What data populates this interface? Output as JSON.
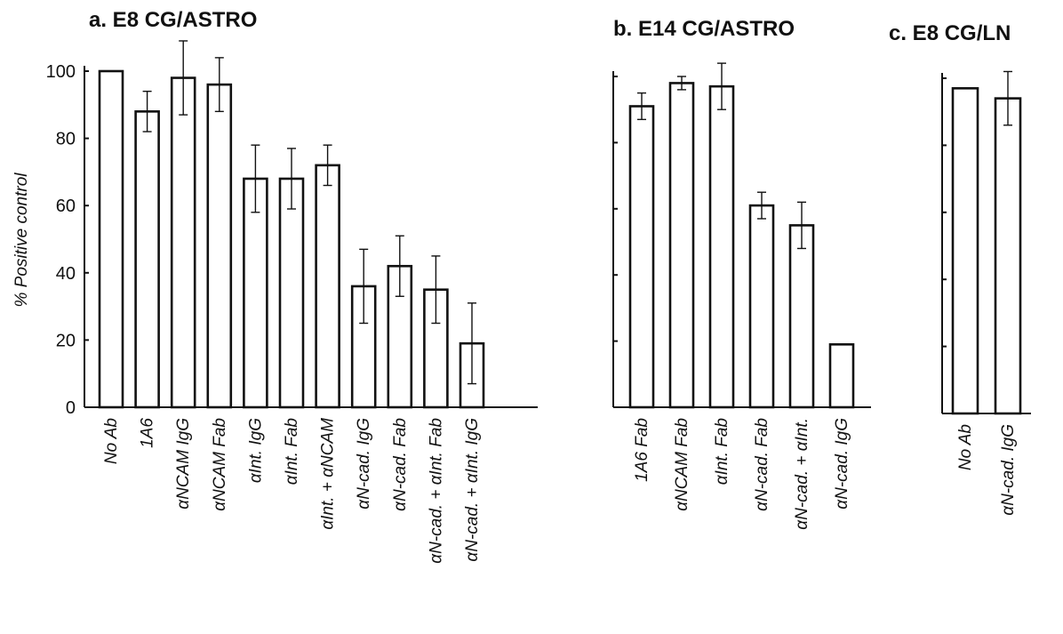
{
  "chart_data": [
    {
      "type": "bar",
      "title": "a. E8 CG/ASTRO",
      "ylabel": "% Positive control",
      "ylim": [
        0,
        100
      ],
      "yticks": [
        "0",
        "20",
        "40",
        "60",
        "80",
        "100"
      ],
      "categories": [
        "No Ab",
        "1A6",
        "αNCAM IgG",
        "αNCAM Fab",
        "αInt. IgG",
        "αInt. Fab",
        "αInt. + αNCAM",
        "αN-cad. IgG",
        "αN-cad. Fab",
        "αN-cad. + αInt. Fab",
        "αN-cad. + αInt. IgG"
      ],
      "values": [
        100,
        88,
        98,
        96,
        68,
        68,
        72,
        36,
        42,
        35,
        19
      ],
      "errors": [
        0,
        6,
        11,
        8,
        10,
        9,
        6,
        11,
        9,
        10,
        12
      ],
      "show_y_ticklabels": true
    },
    {
      "type": "bar",
      "title": "b. E14 CG/ASTRO",
      "ylim": [
        0,
        100
      ],
      "categories": [
        "1A6 Fab",
        "αNCAM Fab",
        "αInt. Fab",
        "αN-cad. Fab",
        "αN-cad. + αInt.",
        "αN-cad. IgG"
      ],
      "values": [
        91,
        98,
        97,
        61,
        55,
        19
      ],
      "errors": [
        4,
        2,
        7,
        4,
        7,
        0
      ],
      "show_y_ticklabels": false
    },
    {
      "type": "bar",
      "title": "c. E8 CG/LN",
      "ylim": [
        0,
        100
      ],
      "categories": [
        "No Ab",
        "αN-cad. IgG"
      ],
      "values": [
        97,
        94
      ],
      "errors": [
        0,
        8
      ],
      "show_y_ticklabels": false
    }
  ]
}
